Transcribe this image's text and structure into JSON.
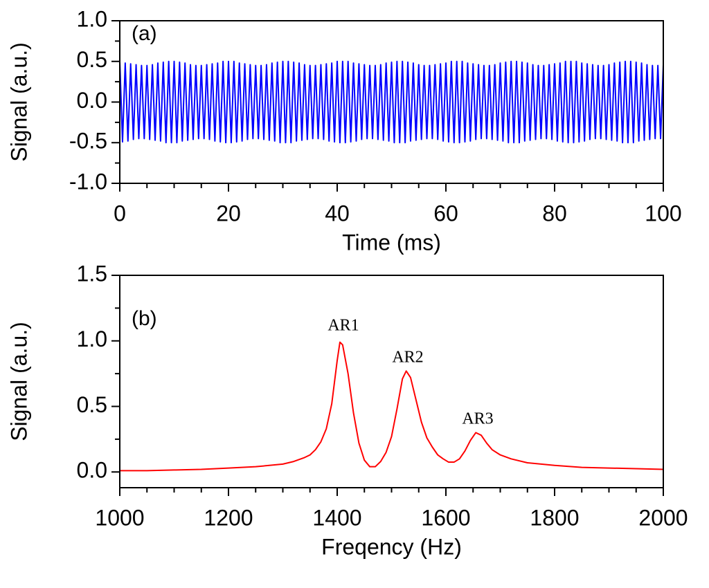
{
  "chart_data": [
    {
      "type": "line",
      "panel_label": "(a)",
      "x_label": "Time (ms)",
      "y_label": "Signal (a.u.)",
      "x": [
        0,
        0.5,
        1,
        1.5,
        2,
        2.5,
        3,
        3.5,
        4,
        4.5,
        5,
        5.5,
        6,
        6.5,
        7,
        7.5,
        8,
        8.5,
        9,
        9.5,
        10,
        10.5,
        11,
        11.5,
        12,
        12.5,
        13,
        13.5,
        14,
        14.5,
        15,
        15.5,
        16,
        16.5,
        17,
        17.5,
        18,
        18.5,
        19,
        19.5,
        20,
        20.5,
        21,
        21.5,
        22,
        22.5,
        23,
        23.5,
        24,
        24.5,
        25,
        25.5,
        26,
        26.5,
        27,
        27.5,
        28,
        28.5,
        29,
        29.5,
        30,
        30.5,
        31,
        31.5,
        32,
        32.5,
        33,
        33.5,
        34,
        34.5,
        35,
        35.5,
        36,
        36.5,
        37,
        37.5,
        38,
        38.5,
        39,
        39.5,
        40,
        40.5,
        41,
        41.5,
        42,
        42.5,
        43,
        43.5,
        44,
        44.5,
        45,
        45.5,
        46,
        46.5,
        47,
        47.5,
        48,
        48.5,
        49,
        49.5,
        50,
        50.5,
        51,
        51.5,
        52,
        52.5,
        53,
        53.5,
        54,
        54.5,
        55,
        55.5,
        56,
        56.5,
        57,
        57.5,
        58,
        58.5,
        59,
        59.5,
        60,
        60.5,
        61,
        61.5,
        62,
        62.5,
        63,
        63.5,
        64,
        64.5,
        65,
        65.5,
        66,
        66.5,
        67,
        67.5,
        68,
        68.5,
        69,
        69.5,
        70,
        70.5,
        71,
        71.5,
        72,
        72.5,
        73,
        73.5,
        74,
        74.5,
        75,
        75.5,
        76,
        76.5,
        77,
        77.5,
        78,
        78.5,
        79,
        79.5,
        80,
        80.5,
        81,
        81.5,
        82,
        82.5,
        83,
        83.5,
        84,
        84.5,
        85,
        85.5,
        86,
        86.5,
        87,
        87.5,
        88,
        88.5,
        89,
        89.5,
        90,
        90.5,
        91,
        91.5,
        92,
        92.5,
        93,
        93.5,
        94,
        94.5,
        95,
        95.5,
        96,
        96.5,
        97,
        97.5,
        98,
        98.5,
        99,
        99.5,
        100
      ],
      "series": [
        {
          "color": "#0000ff",
          "values": [
            0.5,
            -0.49,
            0.48,
            -0.48,
            0.47,
            -0.46,
            0.46,
            -0.45,
            0.45,
            -0.45,
            0.45,
            -0.46,
            0.46,
            -0.47,
            0.48,
            -0.48,
            0.49,
            -0.5,
            0.5,
            -0.5,
            0.5,
            -0.5,
            0.49,
            -0.48,
            0.48,
            -0.47,
            0.46,
            -0.46,
            0.45,
            -0.45,
            0.45,
            -0.45,
            0.46,
            -0.46,
            0.47,
            -0.48,
            0.48,
            -0.49,
            0.5,
            -0.5,
            0.5,
            -0.5,
            0.5,
            -0.49,
            0.48,
            -0.48,
            0.47,
            -0.46,
            0.46,
            -0.45,
            0.45,
            -0.45,
            0.45,
            -0.46,
            0.46,
            -0.47,
            0.48,
            -0.48,
            0.49,
            -0.5,
            0.5,
            -0.5,
            0.5,
            -0.5,
            0.49,
            -0.48,
            0.48,
            -0.47,
            0.46,
            -0.46,
            0.45,
            -0.45,
            0.45,
            -0.45,
            0.46,
            -0.46,
            0.47,
            -0.48,
            0.48,
            -0.49,
            0.5,
            -0.5,
            0.5,
            -0.5,
            0.5,
            -0.49,
            0.48,
            -0.48,
            0.47,
            -0.46,
            0.46,
            -0.45,
            0.45,
            -0.45,
            0.45,
            -0.46,
            0.46,
            -0.47,
            0.48,
            -0.48,
            0.49,
            -0.5,
            0.5,
            -0.5,
            0.5,
            -0.5,
            0.49,
            -0.48,
            0.48,
            -0.47,
            0.46,
            -0.46,
            0.45,
            -0.45,
            0.45,
            -0.45,
            0.46,
            -0.46,
            0.47,
            -0.48,
            0.48,
            -0.49,
            0.5,
            -0.5,
            0.5,
            -0.5,
            0.5,
            -0.49,
            0.48,
            -0.48,
            0.47,
            -0.46,
            0.46,
            -0.45,
            0.45,
            -0.45,
            0.45,
            -0.46,
            0.46,
            -0.47,
            0.48,
            -0.48,
            0.49,
            -0.5,
            0.5,
            -0.5,
            0.5,
            -0.5,
            0.49,
            -0.48,
            0.48,
            -0.47,
            0.46,
            -0.46,
            0.45,
            -0.45,
            0.45,
            -0.45,
            0.46,
            -0.46,
            0.47,
            -0.48,
            0.48,
            -0.49,
            0.5,
            -0.5,
            0.5,
            -0.5,
            0.5,
            -0.49,
            0.48,
            -0.48,
            0.47,
            -0.46,
            0.46,
            -0.45,
            0.45,
            -0.45,
            0.45,
            -0.46,
            0.46,
            -0.47,
            0.48,
            -0.48,
            0.49,
            -0.5,
            0.5,
            -0.5,
            0.5,
            -0.5,
            0.49,
            -0.48,
            0.48,
            -0.47,
            0.46,
            -0.46,
            0.45,
            -0.45,
            0.45,
            -0.45,
            0.46
          ]
        }
      ],
      "xlim": [
        0,
        100
      ],
      "xticks": [
        0,
        20,
        40,
        60,
        80,
        100
      ],
      "ylim": [
        -1,
        1
      ],
      "yticks": [
        {
          "value": -1,
          "label": "-1.0"
        },
        -0.5,
        {
          "value": 0,
          "label": "0.0"
        },
        0.5,
        {
          "value": 1,
          "label": "1.0"
        }
      ]
    },
    {
      "type": "line",
      "panel_label": "(b)",
      "x_label": "Freqency (Hz)",
      "y_label": "Signal (a.u.)",
      "x": [
        1000,
        1050,
        1100,
        1150,
        1200,
        1250,
        1300,
        1320,
        1340,
        1350,
        1360,
        1370,
        1380,
        1390,
        1400,
        1405,
        1410,
        1420,
        1430,
        1440,
        1450,
        1460,
        1470,
        1480,
        1490,
        1500,
        1510,
        1520,
        1527,
        1535,
        1545,
        1555,
        1565,
        1575,
        1585,
        1595,
        1605,
        1615,
        1625,
        1635,
        1645,
        1655,
        1665,
        1675,
        1685,
        1700,
        1720,
        1750,
        1800,
        1850,
        1900,
        1950,
        2000
      ],
      "series": [
        {
          "color": "#ff0000",
          "values": [
            0.01,
            0.01,
            0.015,
            0.02,
            0.03,
            0.04,
            0.06,
            0.08,
            0.11,
            0.13,
            0.17,
            0.23,
            0.33,
            0.52,
            0.85,
            0.99,
            0.97,
            0.75,
            0.45,
            0.22,
            0.09,
            0.04,
            0.04,
            0.08,
            0.15,
            0.27,
            0.48,
            0.71,
            0.77,
            0.72,
            0.55,
            0.38,
            0.26,
            0.19,
            0.13,
            0.1,
            0.075,
            0.075,
            0.1,
            0.16,
            0.24,
            0.3,
            0.28,
            0.22,
            0.17,
            0.13,
            0.1,
            0.07,
            0.05,
            0.035,
            0.03,
            0.025,
            0.02
          ]
        }
      ],
      "annotations": [
        "AR1",
        "AR2",
        "AR3"
      ],
      "xlim": [
        1000,
        2000
      ],
      "xticks": [
        1000,
        1200,
        1400,
        1600,
        1800,
        2000
      ],
      "ylim": [
        -0.12,
        1.5
      ],
      "yticks": [
        {
          "value": 0,
          "label": "0.0"
        },
        0.5,
        {
          "value": 1,
          "label": "1.0"
        },
        {
          "value": 1.5,
          "label": "1.5"
        }
      ]
    }
  ]
}
